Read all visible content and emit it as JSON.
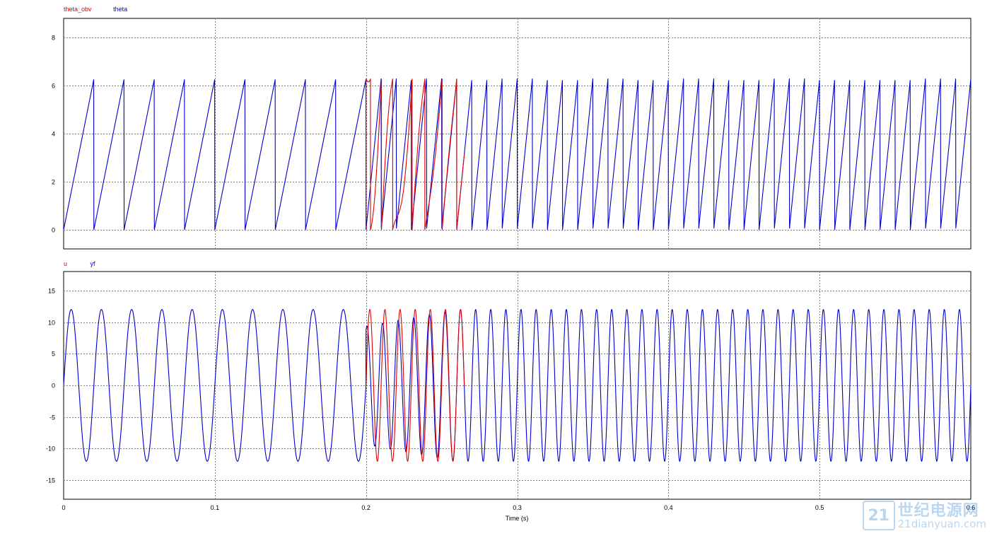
{
  "chart_data": [
    {
      "type": "line",
      "title": "",
      "xlabel": "",
      "ylabel": "",
      "xlim": [
        0,
        0.6
      ],
      "ylim": [
        -0.8,
        8.8
      ],
      "yticks": [
        0,
        2,
        4,
        6,
        8
      ],
      "yticklabels": [
        "0",
        "2",
        "4",
        "6",
        "8"
      ],
      "grid": true,
      "legend_placement": "top-left, above plot",
      "series": [
        {
          "name": "theta_obv",
          "color": "#e00000",
          "description_values": {
            "shape": "sawtooth",
            "t_start": 0.2,
            "t_end": 0.265,
            "amplitude_max": 6.28,
            "amplitude_min": 0,
            "period_after_switch": 0.01
          }
        },
        {
          "name": "theta",
          "color": "#0000cc",
          "description_values": {
            "shape": "sawtooth",
            "t_start": 0,
            "t_end": 0.6,
            "amplitude_max": 6.28,
            "amplitude_min": 0,
            "period_before": 0.02,
            "period_after": 0.01,
            "switch_time": 0.2
          }
        }
      ]
    },
    {
      "type": "line",
      "title": "",
      "xlabel": "Time (s)",
      "ylabel": "",
      "xlim": [
        0,
        0.6
      ],
      "ylim": [
        -18,
        18
      ],
      "yticks": [
        -15,
        -10,
        -5,
        0,
        5,
        10,
        15
      ],
      "yticklabels": [
        "-15",
        "-10",
        "-5",
        "0",
        "5",
        "10",
        "15"
      ],
      "xticks": [
        0,
        0.1,
        0.2,
        0.3,
        0.4,
        0.5,
        0.6
      ],
      "xticklabels": [
        "0",
        "0.1",
        "0.2",
        "0.3",
        "0.4",
        "0.5",
        "0.6"
      ],
      "grid": true,
      "legend_placement": "top-left, above plot",
      "series": [
        {
          "name": "u",
          "color": "#e00000",
          "description_values": {
            "shape": "sine",
            "t_start": 0.2,
            "t_end": 0.265,
            "amplitude": 12,
            "frequency_hz": 100
          }
        },
        {
          "name": "yf",
          "color": "#0000cc",
          "description_values": {
            "shape": "sine",
            "t_start": 0,
            "t_end": 0.6,
            "amplitude": 12,
            "frequency_before_hz": 50,
            "frequency_after_hz": 100,
            "switch_time": 0.2
          }
        }
      ]
    }
  ],
  "watermark": {
    "logo_char": "21",
    "title": "世纪电源网",
    "url": "21dianyuan.com"
  }
}
